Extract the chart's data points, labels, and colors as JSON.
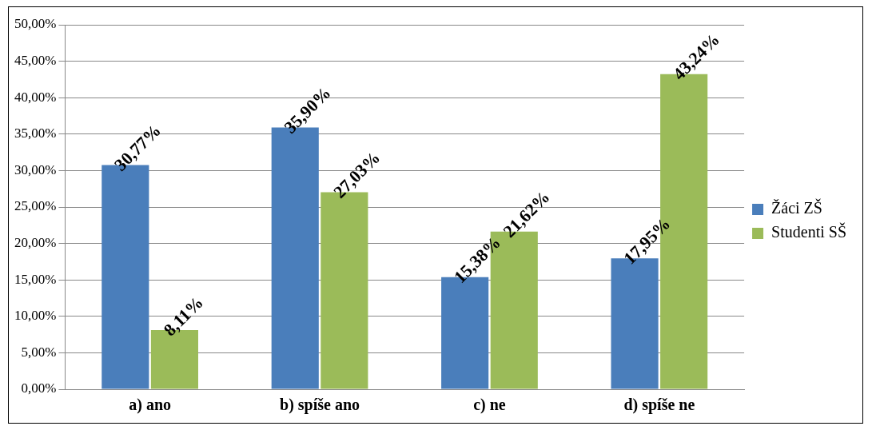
{
  "chart_data": {
    "type": "bar",
    "categories": [
      "a) ano",
      "b) spíše ano",
      "c) ne",
      "d) spíše ne"
    ],
    "series": [
      {
        "name": "Žáci ZŠ",
        "color": "#4a7ebb",
        "values": [
          30.77,
          35.9,
          15.38,
          17.95
        ],
        "value_labels": [
          "30,77%",
          "35,90%",
          "15,38%",
          "17,95%"
        ]
      },
      {
        "name": "Studenti SŠ",
        "color": "#9bbb59",
        "values": [
          8.11,
          27.03,
          21.62,
          43.24
        ],
        "value_labels": [
          "8,11%",
          "27,03%",
          "21,62%",
          "43,24%"
        ]
      }
    ],
    "ylim": [
      0,
      50
    ],
    "yticks": [
      {
        "value": 0,
        "label": "0,00%"
      },
      {
        "value": 5,
        "label": "5,00%"
      },
      {
        "value": 10,
        "label": "10,00%"
      },
      {
        "value": 15,
        "label": "15,00%"
      },
      {
        "value": 20,
        "label": "20,00%"
      },
      {
        "value": 25,
        "label": "25,00%"
      },
      {
        "value": 30,
        "label": "30,00%"
      },
      {
        "value": 35,
        "label": "35,00%"
      },
      {
        "value": 40,
        "label": "40,00%"
      },
      {
        "value": 45,
        "label": "45,00%"
      },
      {
        "value": 50,
        "label": "50,00%"
      }
    ],
    "grid": "y",
    "legend": "right"
  }
}
